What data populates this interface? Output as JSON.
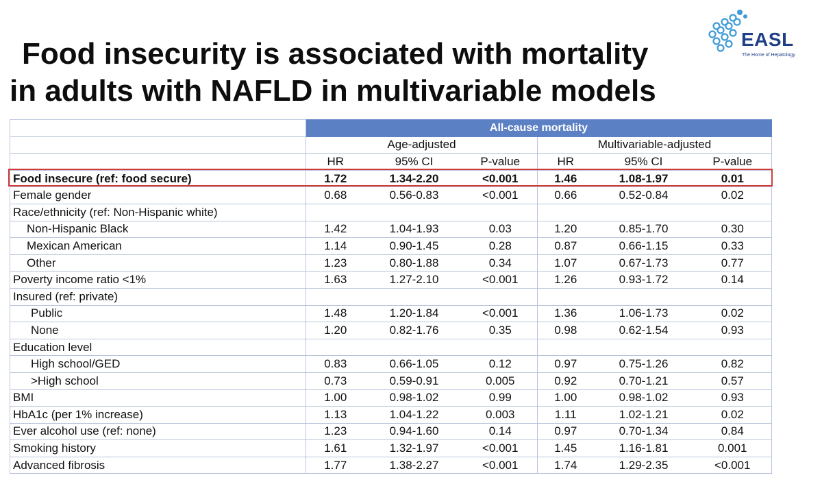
{
  "slide": {
    "title_line1": "Food insecurity is associated with mortality",
    "title_line2": "in adults with NAFLD in multivariable models"
  },
  "logo": {
    "text": "EASL",
    "tagline": "The Home of Hepatology",
    "brand_color": "#1f3f86"
  },
  "table": {
    "banner": "All-cause mortality",
    "group_age": "Age-adjusted",
    "group_multi": "Multivariable-adjusted",
    "columns": [
      "HR",
      "95% CI",
      "P-value",
      "HR",
      "95% CI",
      "P-value"
    ],
    "header_color": "#5b80c3",
    "highlight_color": "#d23a3a",
    "rows": [
      {
        "label": "Food insecure (ref: food secure)",
        "v": [
          "1.72",
          "1.34-2.20",
          "<0.001",
          "1.46",
          "1.08-1.97",
          "0.01"
        ]
      },
      {
        "label": "Female gender",
        "v": [
          "0.68",
          "0.56-0.83",
          "<0.001",
          "0.66",
          "0.52-0.84",
          "0.02"
        ]
      },
      {
        "label": "Race/ethnicity (ref: Non-Hispanic white)",
        "v": [
          "",
          "",
          "",
          "",
          "",
          ""
        ]
      },
      {
        "label": "Non-Hispanic Black",
        "v": [
          "1.42",
          "1.04-1.93",
          "0.03",
          "1.20",
          "0.85-1.70",
          "0.30"
        ]
      },
      {
        "label": "Mexican American",
        "v": [
          "1.14",
          "0.90-1.45",
          "0.28",
          "0.87",
          "0.66-1.15",
          "0.33"
        ]
      },
      {
        "label": "Other",
        "v": [
          "1.23",
          "0.80-1.88",
          "0.34",
          "1.07",
          "0.67-1.73",
          "0.77"
        ]
      },
      {
        "label": "Poverty income ratio <1%",
        "v": [
          "1.63",
          "1.27-2.10",
          "<0.001",
          "1.26",
          "0.93-1.72",
          "0.14"
        ]
      },
      {
        "label": "Insured (ref: private)",
        "v": [
          "",
          "",
          "",
          "",
          "",
          ""
        ]
      },
      {
        "label": "Public",
        "v": [
          "1.48",
          "1.20-1.84",
          "<0.001",
          "1.36",
          "1.06-1.73",
          "0.02"
        ]
      },
      {
        "label": "None",
        "v": [
          "1.20",
          "0.82-1.76",
          "0.35",
          "0.98",
          "0.62-1.54",
          "0.93"
        ]
      },
      {
        "label": "Education level",
        "v": [
          "",
          "",
          "",
          "",
          "",
          ""
        ]
      },
      {
        "label": "High school/GED",
        "v": [
          "0.83",
          "0.66-1.05",
          "0.12",
          "0.97",
          "0.75-1.26",
          "0.82"
        ]
      },
      {
        "label": ">High school",
        "v": [
          "0.73",
          "0.59-0.91",
          "0.005",
          "0.92",
          "0.70-1.21",
          "0.57"
        ]
      },
      {
        "label": "BMI",
        "v": [
          "1.00",
          "0.98-1.02",
          "0.99",
          "1.00",
          "0.98-1.02",
          "0.93"
        ]
      },
      {
        "label": "HbA1c (per 1% increase)",
        "v": [
          "1.13",
          "1.04-1.22",
          "0.003",
          "1.11",
          "1.02-1.21",
          "0.02"
        ]
      },
      {
        "label": "Ever alcohol use (ref: none)",
        "v": [
          "1.23",
          "0.94-1.60",
          "0.14",
          "0.97",
          "0.70-1.34",
          "0.84"
        ]
      },
      {
        "label": "Smoking history",
        "v": [
          "1.61",
          "1.32-1.97",
          "<0.001",
          "1.45",
          "1.16-1.81",
          "0.001"
        ]
      },
      {
        "label": "Advanced fibrosis",
        "v": [
          "1.77",
          "1.38-2.27",
          "<0.001",
          "1.74",
          "1.29-2.35",
          "<0.001"
        ]
      }
    ]
  }
}
